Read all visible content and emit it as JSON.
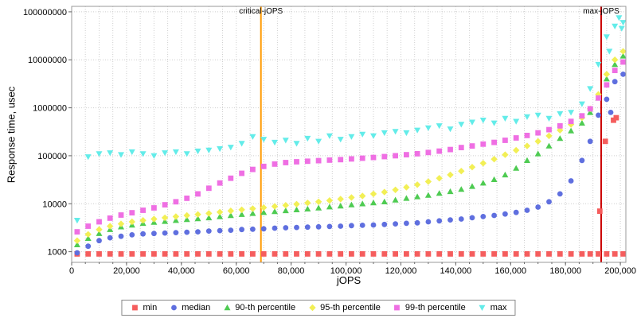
{
  "chart_data": {
    "type": "scatter",
    "title": "",
    "xlabel": "jOPS",
    "ylabel": "Response time, usec",
    "grid": true,
    "legend_position": "bottom",
    "x_axis": {
      "min": 0,
      "max": 202000,
      "minor_step": 5000,
      "ticks": [
        0,
        20000,
        40000,
        60000,
        80000,
        100000,
        120000,
        140000,
        160000,
        180000,
        200000
      ],
      "tick_labels": [
        "0",
        "20,000",
        "40,000",
        "60,000",
        "80,000",
        "100,000",
        "120,000",
        "140,000",
        "160,000",
        "180,000",
        "200,000"
      ]
    },
    "y_axis": {
      "scale": "log",
      "floor": 600,
      "ceiling": 130000000,
      "ticks": [
        1000,
        10000,
        100000,
        1000000,
        10000000,
        100000000
      ],
      "tick_labels": [
        "1000",
        "10000",
        "100000",
        "1000000",
        "10000000",
        "100000000"
      ]
    },
    "reference_lines": [
      {
        "label": "critical-jOPS",
        "x": 69000,
        "color": "#ff9900"
      },
      {
        "label": "max-jOPS",
        "x": 193000,
        "color": "#cc0000"
      }
    ],
    "x": [
      2000,
      6000,
      10000,
      14000,
      18000,
      22000,
      26000,
      30000,
      34000,
      38000,
      42000,
      46000,
      50000,
      54000,
      58000,
      62000,
      66000,
      70000,
      74000,
      78000,
      82000,
      86000,
      90000,
      94000,
      98000,
      102000,
      106000,
      110000,
      114000,
      118000,
      122000,
      126000,
      130000,
      134000,
      138000,
      142000,
      146000,
      150000,
      154000,
      158000,
      162000,
      166000,
      170000,
      174000,
      178000,
      182000,
      186000,
      189000,
      192000,
      195000,
      198000,
      201000
    ],
    "series": [
      {
        "name": "min",
        "marker": "square",
        "color": "#f55d5d",
        "values": [
          900,
          900,
          900,
          900,
          900,
          900,
          900,
          900,
          900,
          900,
          900,
          900,
          900,
          900,
          900,
          900,
          900,
          900,
          900,
          900,
          900,
          900,
          900,
          900,
          900,
          900,
          900,
          900,
          900,
          900,
          900,
          900,
          900,
          900,
          900,
          900,
          900,
          900,
          900,
          900,
          900,
          900,
          900,
          900,
          900,
          900,
          900,
          900,
          900,
          900,
          900,
          900
        ]
      },
      {
        "name": "median",
        "marker": "circle",
        "color": "#5f6fdf",
        "values": [
          950,
          1300,
          1700,
          1950,
          2100,
          2250,
          2350,
          2400,
          2450,
          2500,
          2550,
          2600,
          2700,
          2750,
          2800,
          2900,
          2950,
          3000,
          3100,
          3150,
          3200,
          3250,
          3300,
          3350,
          3400,
          3500,
          3550,
          3600,
          3700,
          3800,
          3900,
          4000,
          4200,
          4400,
          4600,
          4800,
          5100,
          5400,
          5700,
          6100,
          6600,
          7300,
          8500,
          11000,
          16000,
          30000,
          80000,
          200000,
          700000,
          1500000,
          3500000,
          5000000
        ]
      },
      {
        "name": "90-th percentile",
        "marker": "triangle-up",
        "color": "#4ecb52",
        "values": [
          1400,
          1900,
          2400,
          2900,
          3300,
          3600,
          3900,
          4100,
          4300,
          4500,
          4700,
          4900,
          5100,
          5400,
          5700,
          6000,
          6300,
          6600,
          6900,
          7200,
          7500,
          7800,
          8200,
          8600,
          9000,
          9500,
          10000,
          10500,
          11000,
          12000,
          13000,
          14000,
          15000,
          16500,
          18000,
          20000,
          23000,
          27000,
          32000,
          40000,
          55000,
          80000,
          110000,
          160000,
          230000,
          330000,
          480000,
          800000,
          1600000,
          4000000,
          8000000,
          12000000
        ]
      },
      {
        "name": "95-th percentile",
        "marker": "diamond",
        "color": "#f2ef55",
        "values": [
          1700,
          2300,
          2900,
          3400,
          3800,
          4200,
          4500,
          4800,
          5100,
          5400,
          5700,
          6000,
          6300,
          6700,
          7100,
          7500,
          7900,
          8300,
          8800,
          9300,
          9800,
          10400,
          11000,
          11700,
          12500,
          13500,
          14500,
          16000,
          17500,
          19500,
          22000,
          25000,
          29000,
          34000,
          40000,
          48000,
          58000,
          70000,
          85000,
          105000,
          130000,
          160000,
          200000,
          260000,
          340000,
          450000,
          620000,
          950000,
          1900000,
          5000000,
          10000000,
          15000000
        ]
      },
      {
        "name": "99-th percentile",
        "marker": "square",
        "color": "#ef6fe3",
        "values": [
          2600,
          3400,
          4200,
          5000,
          5800,
          6500,
          7300,
          8200,
          9500,
          11000,
          13000,
          16000,
          21000,
          27000,
          34000,
          43000,
          52000,
          60000,
          67000,
          72000,
          75000,
          77000,
          79000,
          81000,
          83000,
          86000,
          89000,
          92000,
          96000,
          100000,
          105000,
          110000,
          117000,
          125000,
          135000,
          148000,
          160000,
          175000,
          190000,
          210000,
          235000,
          265000,
          300000,
          350000,
          420000,
          520000,
          680000,
          950000,
          1600000,
          3000000,
          6000000,
          9000000
        ]
      },
      {
        "name": "max",
        "marker": "triangle-down",
        "color": "#63ece9",
        "values": [
          4500,
          95000,
          110000,
          115000,
          105000,
          120000,
          110000,
          100000,
          115000,
          120000,
          110000,
          125000,
          130000,
          140000,
          150000,
          180000,
          250000,
          220000,
          190000,
          210000,
          180000,
          230000,
          200000,
          260000,
          220000,
          250000,
          280000,
          260000,
          300000,
          320000,
          300000,
          340000,
          380000,
          420000,
          360000,
          450000,
          500000,
          550000,
          480000,
          600000,
          520000,
          650000,
          700000,
          600000,
          750000,
          800000,
          1200000,
          2500000,
          8000000,
          30000000,
          50000000,
          60000000
        ]
      }
    ],
    "extra_points": [
      {
        "series": "min",
        "x": 192500,
        "y": 7000
      },
      {
        "series": "min",
        "x": 194500,
        "y": 200000
      },
      {
        "series": "min",
        "x": 197500,
        "y": 550000
      },
      {
        "series": "min",
        "x": 198500,
        "y": 620000
      },
      {
        "series": "median",
        "x": 196500,
        "y": 800000
      },
      {
        "series": "max",
        "x": 199500,
        "y": 75000000
      },
      {
        "series": "max",
        "x": 200500,
        "y": 45000000
      },
      {
        "series": "max",
        "x": 196000,
        "y": 15000000
      }
    ]
  }
}
